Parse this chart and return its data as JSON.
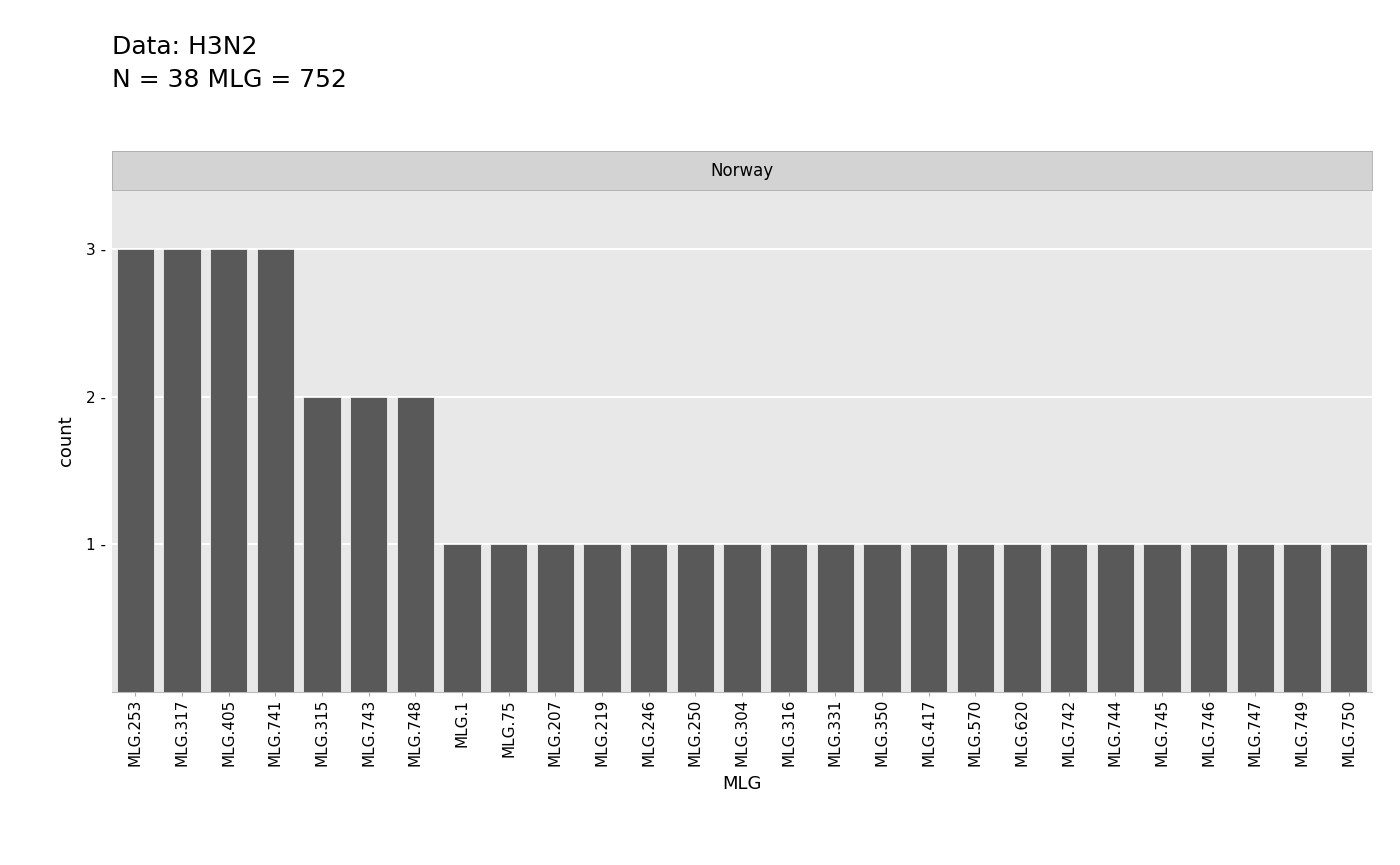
{
  "title_above": "Data: H3N2\nN = 38 MLG = 752",
  "facet_label": "Norway",
  "xlabel": "MLG",
  "ylabel": "count",
  "categories": [
    "MLG.253",
    "MLG.317",
    "MLG.405",
    "MLG.741",
    "MLG.315",
    "MLG.743",
    "MLG.748",
    "MLG.1",
    "MLG.75",
    "MLG.207",
    "MLG.219",
    "MLG.246",
    "MLG.250",
    "MLG.304",
    "MLG.316",
    "MLG.331",
    "MLG.350",
    "MLG.417",
    "MLG.570",
    "MLG.620",
    "MLG.742",
    "MLG.744",
    "MLG.745",
    "MLG.746",
    "MLG.747",
    "MLG.749",
    "MLG.750"
  ],
  "values": [
    3,
    3,
    3,
    3,
    2,
    2,
    2,
    1,
    1,
    1,
    1,
    1,
    1,
    1,
    1,
    1,
    1,
    1,
    1,
    1,
    1,
    1,
    1,
    1,
    1,
    1,
    1
  ],
  "bar_color": "#595959",
  "panel_bg": "#e8e8e8",
  "facet_bg": "#d3d3d3",
  "grid_color": "#ffffff",
  "ylim": [
    0,
    3.4
  ],
  "yticks": [
    1,
    2,
    3
  ],
  "title_fontsize": 18,
  "axis_label_fontsize": 13,
  "tick_label_fontsize": 11,
  "facet_fontsize": 12
}
